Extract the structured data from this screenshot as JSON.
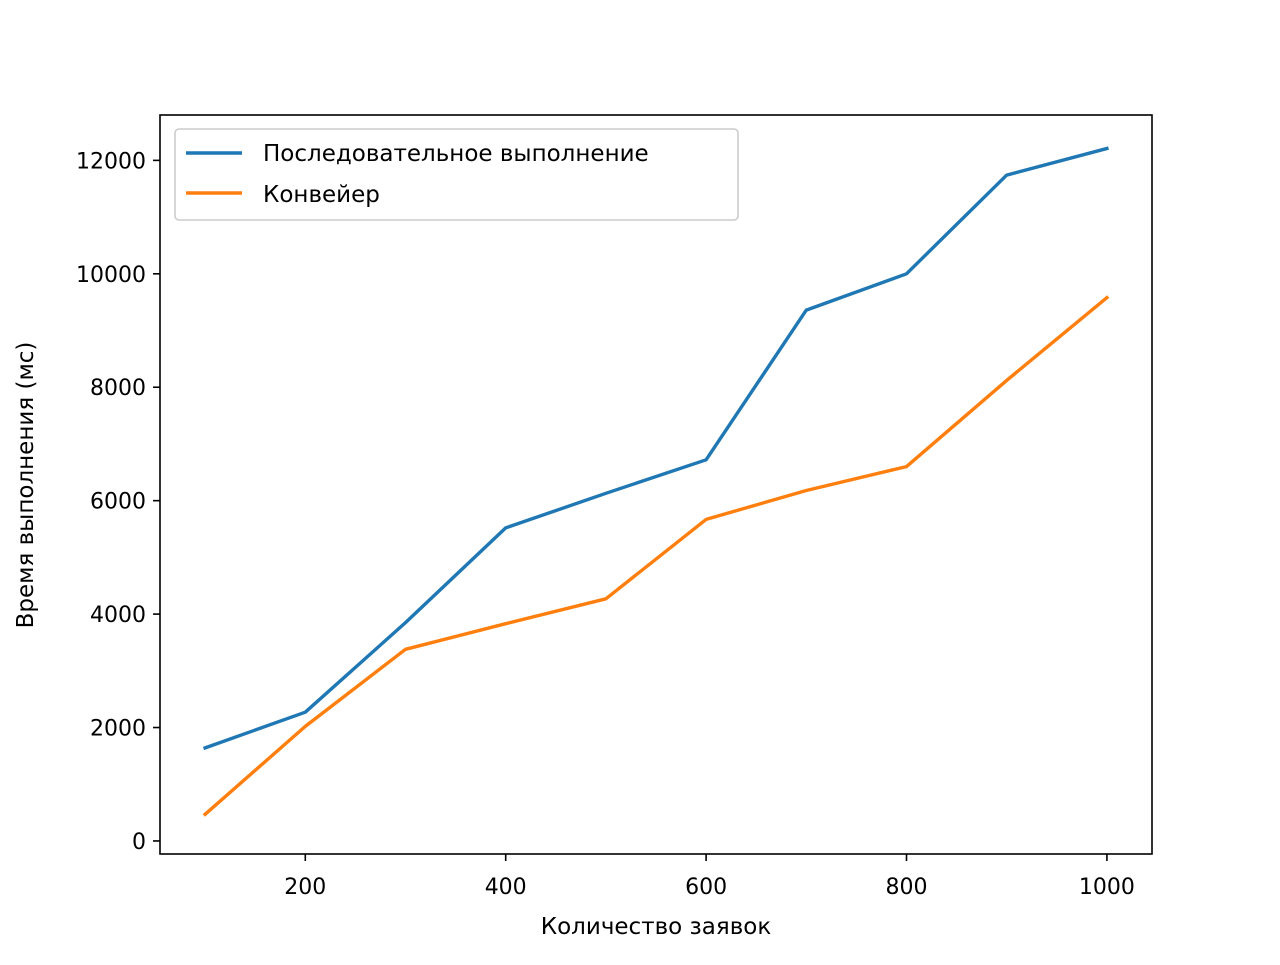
{
  "chart_data": {
    "type": "line",
    "title": "",
    "xlabel": "Количество заявок",
    "ylabel": "Время выполнения (мс)",
    "xlim": [
      55,
      1045
    ],
    "ylim": [
      -230,
      12800
    ],
    "xticks": [
      200,
      400,
      600,
      800,
      1000
    ],
    "xtick_labels": [
      "200",
      "400",
      "600",
      "800",
      "1000"
    ],
    "yticks": [
      0,
      2000,
      4000,
      6000,
      8000,
      10000,
      12000
    ],
    "ytick_labels": [
      "0",
      "2000",
      "4000",
      "6000",
      "8000",
      "10000",
      "12000"
    ],
    "grid": false,
    "legend_position": "top-left",
    "x": [
      100,
      200,
      300,
      400,
      500,
      600,
      700,
      800,
      900,
      1000
    ],
    "series": [
      {
        "name": "Последовательное выполнение",
        "color": "#1f77b4",
        "values": [
          1640,
          2270,
          3850,
          5520,
          6130,
          6720,
          9360,
          10000,
          11740,
          12210
        ]
      },
      {
        "name": "Конвейер",
        "color": "#ff7f0e",
        "values": [
          470,
          2020,
          3380,
          3830,
          4270,
          5670,
          6180,
          6600,
          8120,
          9580
        ]
      }
    ]
  }
}
